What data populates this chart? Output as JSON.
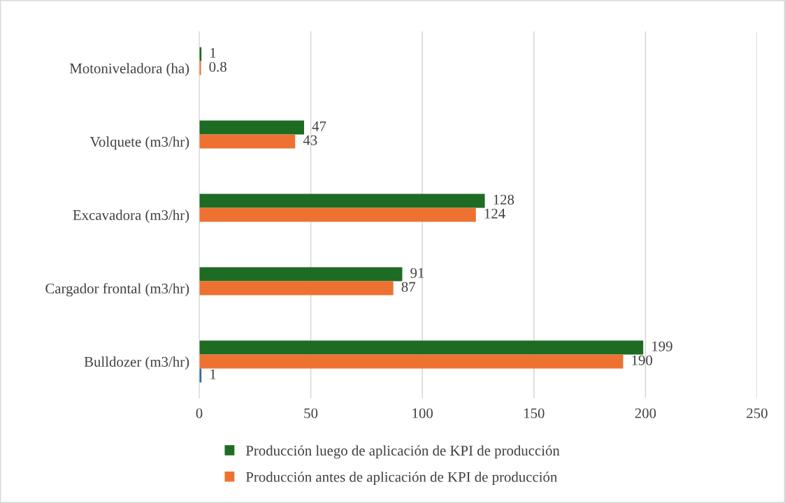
{
  "chart_data": {
    "type": "bar",
    "orientation": "horizontal",
    "categories": [
      "Motoniveladora (ha)",
      "Volquete (m3/hr)",
      "Excavadora (m3/hr)",
      "Cargador frontal (m3/hr)",
      "Bulldozer (m3/hr)"
    ],
    "series": [
      {
        "name": "Producción luego de aplicación de KPI de producción",
        "color": "#1e6b23",
        "values": [
          1,
          47,
          128,
          91,
          199
        ]
      },
      {
        "name": "Producción antes de aplicación de KPI de producción",
        "color": "#ed7231",
        "values": [
          0.8,
          43,
          124,
          87,
          190
        ]
      },
      {
        "color": "#2e6e9e",
        "values": [
          null,
          null,
          null,
          null,
          1
        ]
      }
    ],
    "xlim": [
      0,
      250
    ],
    "xticks": [
      0,
      50,
      100,
      150,
      200,
      250
    ],
    "grid": "x",
    "legend": "bottom",
    "data_labels": true
  }
}
